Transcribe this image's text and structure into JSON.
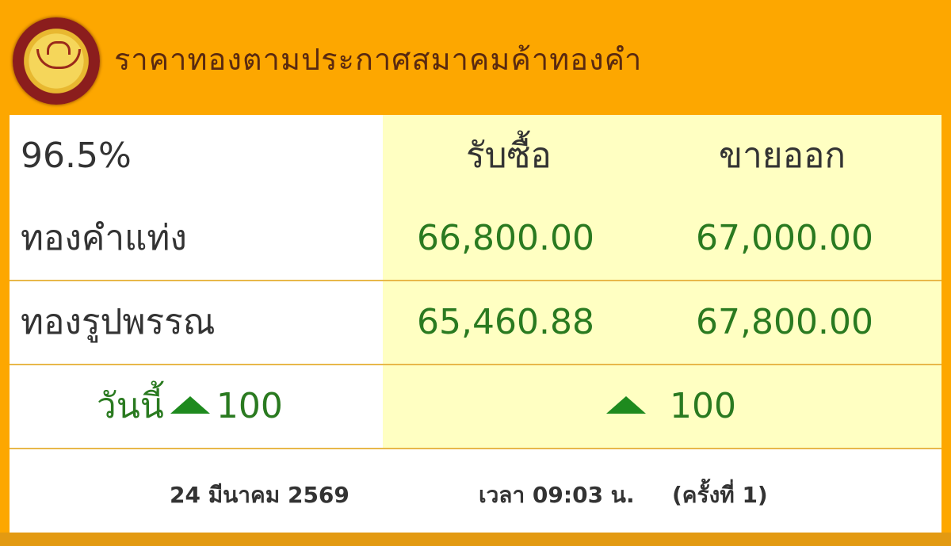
{
  "header": {
    "title": "ราคาทองตามประกาศสมาคมค้าทองคำ",
    "logo": "gold-traders-association-logo"
  },
  "table": {
    "purity": "96.5%",
    "col_buy": "รับซื้อ",
    "col_sell": "ขายออก",
    "rows": [
      {
        "label": "ทองคำแท่ง",
        "buy": "66,800.00",
        "sell": "67,000.00"
      },
      {
        "label": "ทองรูปพรรณ",
        "buy": "65,460.88",
        "sell": "67,800.00"
      }
    ],
    "change": {
      "label": "วันนี้",
      "left_value": "100",
      "right_value": "100",
      "direction": "up",
      "icon": "triangle-up-icon",
      "color": "#1e8a1e"
    }
  },
  "footer": {
    "date": "24 มีนาคม 2569",
    "time": "เวลา 09:03 น.",
    "round": "(ครั้งที่ 1)"
  },
  "colors": {
    "header_bg": "#fda700",
    "price_green": "#2a7a20",
    "cell_yellow": "#ffffc2"
  }
}
